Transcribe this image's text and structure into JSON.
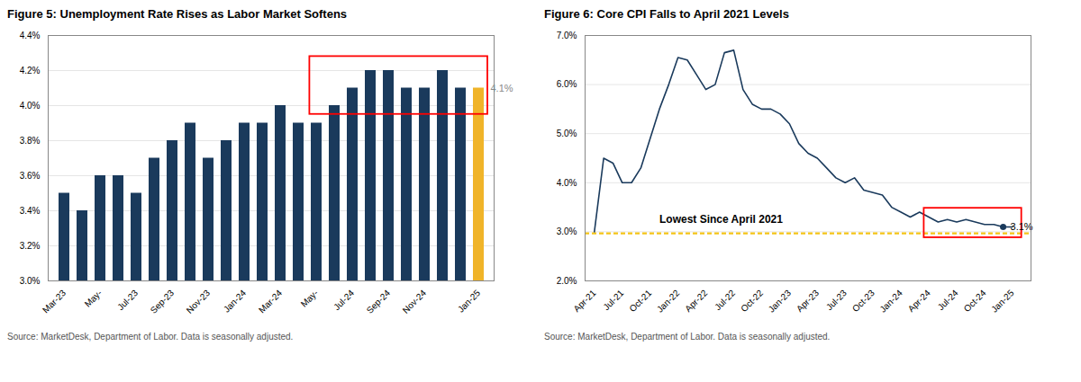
{
  "chart_data": [
    {
      "type": "bar",
      "title": "Figure 5: Unemployment Rate Rises as Labor Market Softens",
      "caption": "Source: MarketDesk, Department of Labor. Data is seasonally adjusted.",
      "categories": [
        "Mar-23",
        null,
        "May-",
        null,
        "Jul-23",
        null,
        "Sep-23",
        null,
        "Nov-23",
        null,
        "Jan-24",
        null,
        "Mar-24",
        null,
        "May-",
        null,
        "Jul-24",
        null,
        "Sep-24",
        null,
        "Nov-24",
        null,
        null,
        "Jan-25"
      ],
      "values": [
        3.5,
        3.4,
        3.6,
        3.6,
        3.5,
        3.7,
        3.8,
        3.9,
        3.7,
        3.8,
        3.9,
        3.9,
        4.0,
        3.9,
        3.9,
        4.0,
        4.1,
        4.2,
        4.2,
        4.1,
        4.1,
        4.2,
        4.1,
        4.1
      ],
      "colors": [
        "#1a3a5c",
        "#1a3a5c",
        "#1a3a5c",
        "#1a3a5c",
        "#1a3a5c",
        "#1a3a5c",
        "#1a3a5c",
        "#1a3a5c",
        "#1a3a5c",
        "#1a3a5c",
        "#1a3a5c",
        "#1a3a5c",
        "#1a3a5c",
        "#1a3a5c",
        "#1a3a5c",
        "#1a3a5c",
        "#1a3a5c",
        "#1a3a5c",
        "#1a3a5c",
        "#1a3a5c",
        "#1a3a5c",
        "#1a3a5c",
        "#1a3a5c",
        "#f0b429"
      ],
      "ylim": [
        3.0,
        4.4
      ],
      "yticks": [
        {
          "value": 3.0,
          "label": "3.0%"
        },
        {
          "value": 3.2,
          "label": "3.2%"
        },
        {
          "value": 3.4,
          "label": "3.4%"
        },
        {
          "value": 3.6,
          "label": "3.6%"
        },
        {
          "value": 3.8,
          "label": "3.8%"
        },
        {
          "value": 4.0,
          "label": "4.0%"
        },
        {
          "value": 4.2,
          "label": "4.2%"
        },
        {
          "value": 4.4,
          "label": "4.4%"
        }
      ],
      "grid": true,
      "annotations": [
        {
          "text": "4.1%",
          "color": "#888888"
        }
      ],
      "highlight": {
        "from": 14,
        "ylim": [
          3.95,
          4.28
        ],
        "color": "red"
      }
    },
    {
      "type": "line",
      "title": "Figure 6: Core CPI Falls to April 2021 Levels",
      "caption": "Source: MarketDesk, Department of Labor. Data is seasonally adjusted.",
      "x": [
        0,
        1,
        2,
        3,
        4,
        5,
        6,
        7,
        8,
        9,
        10,
        11,
        12,
        13,
        14,
        15,
        16,
        17,
        18,
        19,
        20,
        21,
        22,
        23,
        24,
        25,
        26,
        27,
        28,
        29,
        30,
        31,
        32,
        33,
        34,
        35,
        36,
        37,
        38,
        39,
        40,
        41,
        42,
        43,
        44,
        45
      ],
      "values": [
        3.0,
        4.5,
        4.4,
        4.0,
        4.0,
        4.3,
        4.9,
        5.5,
        6.0,
        6.55,
        6.5,
        6.2,
        5.9,
        6.0,
        6.65,
        6.7,
        5.9,
        5.6,
        5.5,
        5.5,
        5.4,
        5.2,
        4.8,
        4.6,
        4.5,
        4.3,
        4.1,
        4.0,
        4.1,
        3.85,
        3.8,
        3.75,
        3.5,
        3.4,
        3.3,
        3.4,
        3.3,
        3.2,
        3.25,
        3.2,
        3.25,
        3.2,
        3.15,
        3.15,
        3.1,
        3.1
      ],
      "color": "#1a3a5c",
      "xlim": [
        -1,
        47
      ],
      "xticks": [
        {
          "value": 0,
          "label": "Apr-21"
        },
        {
          "value": 3,
          "label": "Jul-21"
        },
        {
          "value": 6,
          "label": "Oct-21"
        },
        {
          "value": 9,
          "label": "Jan-22"
        },
        {
          "value": 12,
          "label": "Apr-22"
        },
        {
          "value": 15,
          "label": "Jul-22"
        },
        {
          "value": 18,
          "label": "Oct-22"
        },
        {
          "value": 21,
          "label": "Jan-23"
        },
        {
          "value": 24,
          "label": "Apr-23"
        },
        {
          "value": 27,
          "label": "Jul-23"
        },
        {
          "value": 30,
          "label": "Oct-23"
        },
        {
          "value": 33,
          "label": "Jan-24"
        },
        {
          "value": 36,
          "label": "Apr-24"
        },
        {
          "value": 39,
          "label": "Jul-24"
        },
        {
          "value": 42,
          "label": "Oct-24"
        },
        {
          "value": 45,
          "label": "Jan-25"
        }
      ],
      "ylim": [
        2.0,
        7.0
      ],
      "yticks": [
        {
          "value": 2.0,
          "label": "2.0%"
        },
        {
          "value": 3.0,
          "label": "3.0%"
        },
        {
          "value": 4.0,
          "label": "4.0%"
        },
        {
          "value": 5.0,
          "label": "5.0%"
        },
        {
          "value": 6.0,
          "label": "6.0%"
        },
        {
          "value": 7.0,
          "label": "7.0%"
        }
      ],
      "grid": true,
      "reference_line": {
        "value": 2.97,
        "color": "#f5c518",
        "line_style": "dashed"
      },
      "highlight": {
        "xlim": [
          35.5,
          46
        ],
        "ylim": [
          2.88,
          3.48
        ],
        "color": "red"
      },
      "annotations": [
        {
          "text": "3.1%",
          "x": 44,
          "y": 3.1,
          "marker": "dot"
        },
        {
          "text": "Lowest Since April 2021",
          "x": 7,
          "y": 3.18
        }
      ]
    }
  ]
}
